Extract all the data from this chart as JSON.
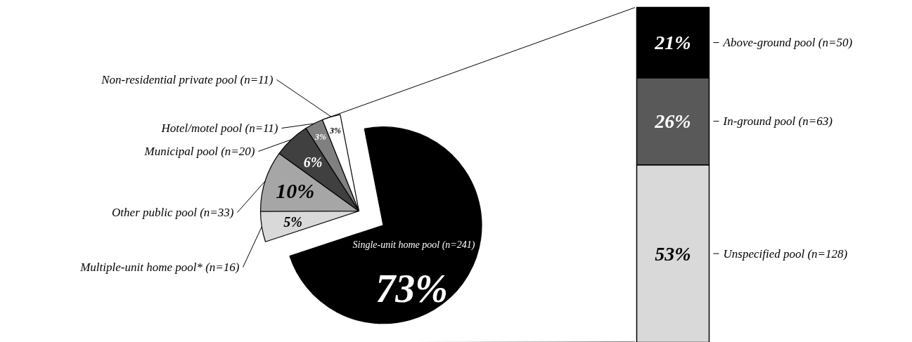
{
  "chart_data": [
    {
      "type": "pie",
      "categories": [
        "Single-unit home pool (n=241)",
        "Multiple-unit home pool* (n=16)",
        "Other public pool (n=33)",
        "Municipal pool (n=20)",
        "Hotel/motel pool (n=11)",
        "Non-residential private pool (n=11)"
      ],
      "values": [
        73,
        5,
        10,
        6,
        3,
        3
      ],
      "colors": [
        "#000000",
        "#d9d9d9",
        "#a6a6a6",
        "#404040",
        "#808080",
        "#ffffff"
      ],
      "value_labels": [
        "73%",
        "5%",
        "10%",
        "6%",
        "3%",
        "3%"
      ]
    },
    {
      "type": "bar",
      "stacked": true,
      "legend": "right",
      "categories": [
        null
      ],
      "series": [
        {
          "name": "Unspecified pool (n=128)",
          "color": "#d9d9d9",
          "values": [
            53
          ],
          "value_labels": [
            "53%"
          ]
        },
        {
          "name": "In-ground pool (n=63)",
          "color": "#595959",
          "values": [
            26
          ],
          "value_labels": [
            "26%"
          ]
        },
        {
          "name": "Above-ground pool (n=50)",
          "color": "#000000",
          "values": [
            21
          ],
          "value_labels": [
            "21%"
          ]
        }
      ]
    }
  ]
}
